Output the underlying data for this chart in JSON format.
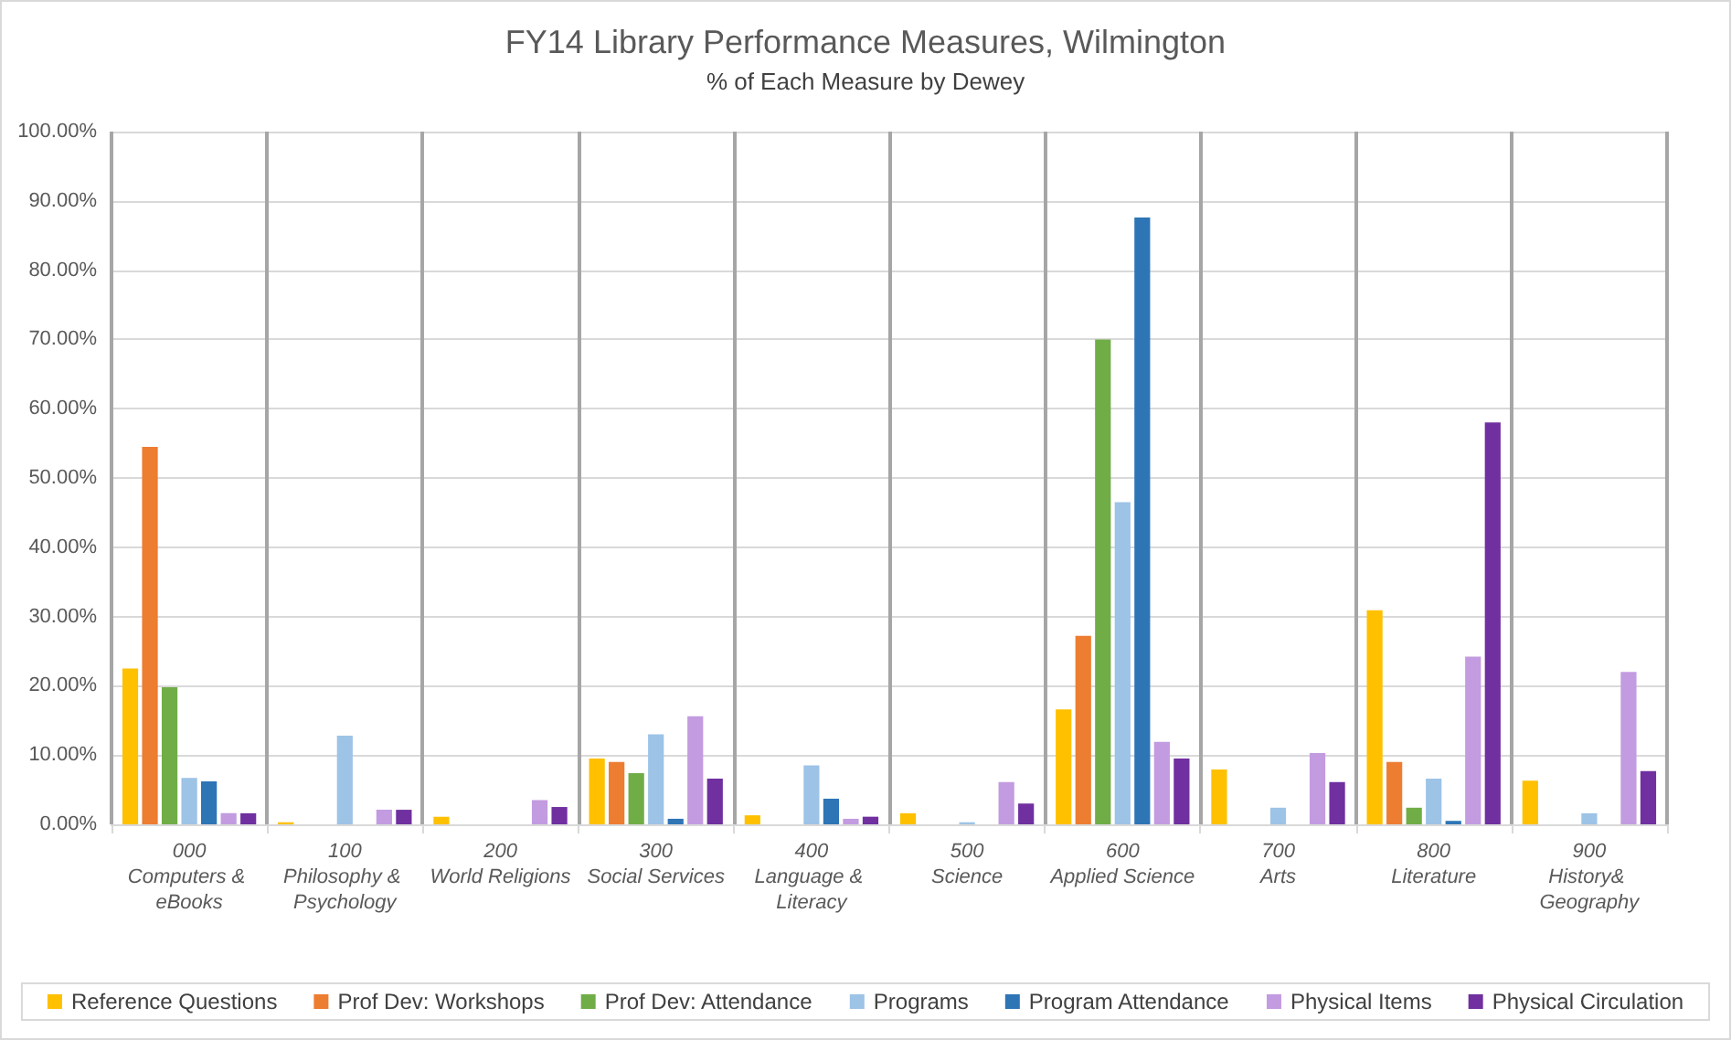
{
  "chart_data": {
    "type": "bar",
    "title": "FY14 Library Performance Measures, Wilmington",
    "subtitle": "% of Each Measure by Dewey",
    "categories": [
      "000 Computers & eBooks",
      "100 Philosophy & Psychology",
      "200 World Religions",
      "300 Social Services",
      "400 Language & Literacy",
      "500 Science",
      "600 Applied Science",
      "700 Arts",
      "800 Literature",
      "900 History& Geography"
    ],
    "series": [
      {
        "name": "Reference Questions",
        "color": "#ffc000",
        "values": [
          22.5,
          0.3,
          1.1,
          9.5,
          1.3,
          1.6,
          16.6,
          7.9,
          30.9,
          6.3
        ]
      },
      {
        "name": "Prof Dev: Workshops",
        "color": "#ed7d31",
        "values": [
          54.5,
          0,
          0,
          9.0,
          0,
          0,
          27.2,
          0,
          9.0,
          0
        ]
      },
      {
        "name": "Prof Dev: Attendance",
        "color": "#70ad47",
        "values": [
          19.8,
          0,
          0,
          7.4,
          0,
          0,
          70.0,
          0,
          2.4,
          0
        ]
      },
      {
        "name": "Programs",
        "color": "#9dc3e6",
        "values": [
          6.7,
          12.8,
          0,
          13.0,
          8.5,
          0.3,
          46.5,
          2.4,
          6.6,
          1.6
        ]
      },
      {
        "name": "Program Attendance",
        "color": "#2e75b6",
        "values": [
          6.2,
          0,
          0,
          0.8,
          3.7,
          0,
          87.6,
          0,
          0.5,
          0
        ]
      },
      {
        "name": "Physical Items",
        "color": "#c39be0",
        "values": [
          1.6,
          2.1,
          3.5,
          15.6,
          0.8,
          6.1,
          11.9,
          10.3,
          24.2,
          22.0
        ]
      },
      {
        "name": "Physical Circulation",
        "color": "#7030a0",
        "values": [
          1.6,
          2.1,
          2.5,
          6.6,
          1.1,
          3.0,
          9.5,
          6.1,
          58.0,
          7.7
        ]
      }
    ],
    "ylim": [
      0,
      100
    ],
    "yticks": [
      {
        "value": 0,
        "label": "0.00%"
      },
      {
        "value": 10,
        "label": "10.00%"
      },
      {
        "value": 20,
        "label": "20.00%"
      },
      {
        "value": 30,
        "label": "30.00%"
      },
      {
        "value": 40,
        "label": "40.00%"
      },
      {
        "value": 50,
        "label": "50.00%"
      },
      {
        "value": 60,
        "label": "60.00%"
      },
      {
        "value": 70,
        "label": "70.00%"
      },
      {
        "value": 80,
        "label": "80.00%"
      },
      {
        "value": 90,
        "label": "90.00%"
      },
      {
        "value": 100,
        "label": "100.00%"
      }
    ],
    "grid": true,
    "legend": "bottom"
  }
}
